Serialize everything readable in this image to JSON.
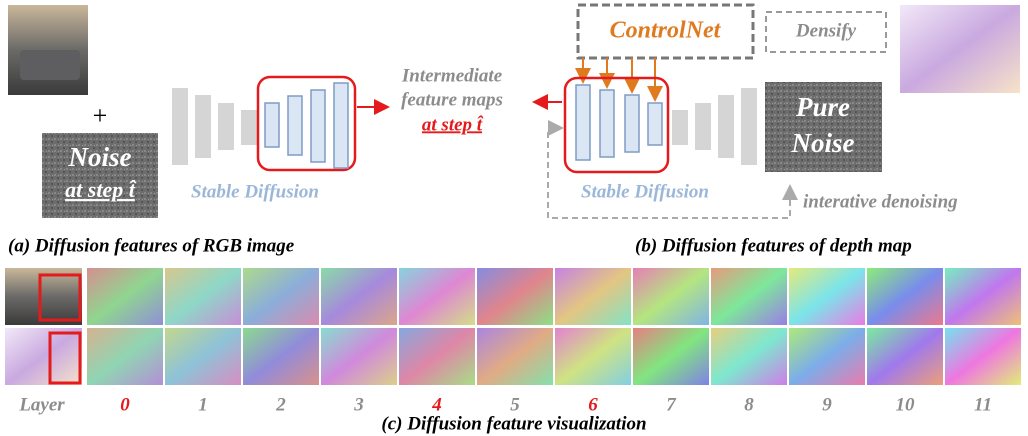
{
  "rgb_branch": {
    "plus": "+",
    "noise_line1": "Noise",
    "noise_line2": "at step t̂",
    "model": "Stable Diffusion",
    "caption": "(a) Diffusion features of RGB image"
  },
  "middle": {
    "line1": "Intermediate",
    "line2": "feature maps",
    "line3": "at step t̂"
  },
  "depth_branch": {
    "controlnet": "ControlNet",
    "densify": "Densify",
    "noise_line1": "Pure",
    "noise_line2": "Noise",
    "model": "Stable Diffusion",
    "loop_label": "interative denoising",
    "caption": "(b) Diffusion features of depth map"
  },
  "visualization": {
    "row_label": "Layer",
    "layers": [
      "0",
      "1",
      "2",
      "3",
      "4",
      "5",
      "6",
      "7",
      "8",
      "9",
      "10",
      "11"
    ],
    "caption": "(c) Diffusion feature visualization"
  }
}
